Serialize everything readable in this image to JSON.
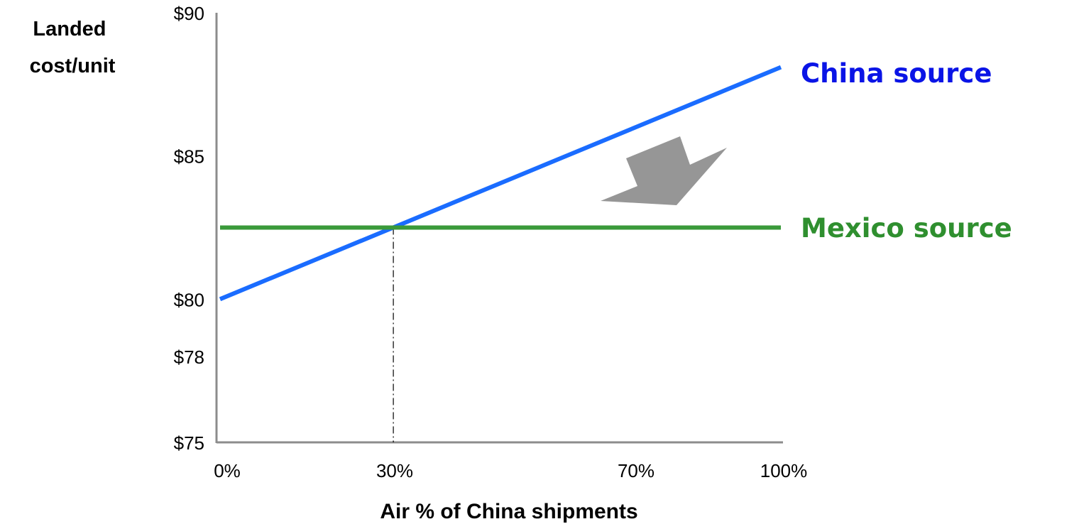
{
  "chart_data": {
    "type": "line",
    "ylabel_lines": [
      "Landed",
      "cost/unit"
    ],
    "xlabel": "Air % of China shipments",
    "x_ticks": [
      {
        "value": 0,
        "label": "0%"
      },
      {
        "value": 30,
        "label": "30%"
      },
      {
        "value": 70,
        "label": "70%"
      },
      {
        "value": 100,
        "label": "100%"
      }
    ],
    "y_ticks": [
      {
        "value": 75,
        "label": "$75"
      },
      {
        "value": 78,
        "label": "$78"
      },
      {
        "value": 80,
        "label": "$80"
      },
      {
        "value": 85,
        "label": "$85"
      },
      {
        "value": 90,
        "label": "$90"
      }
    ],
    "xlim": [
      0,
      100
    ],
    "ylim": [
      75,
      90
    ],
    "grid": false,
    "series": [
      {
        "name": "China source",
        "color": "#1a6cff",
        "label_color": "#0a14e6",
        "x": [
          0,
          100
        ],
        "y": [
          80,
          88.1
        ]
      },
      {
        "name": "Mexico source",
        "color": "#3a9a3a",
        "label_color": "#2f8f2f",
        "x": [
          0,
          100
        ],
        "y": [
          82.5,
          82.5
        ]
      }
    ],
    "annotations": [
      {
        "type": "dashdot-vertical",
        "x": 30.9,
        "from_y": 75,
        "to_y": 82.5
      },
      {
        "type": "arrow",
        "color": "#969696",
        "meaning": "shift-down-toward-mexico-source"
      }
    ]
  }
}
